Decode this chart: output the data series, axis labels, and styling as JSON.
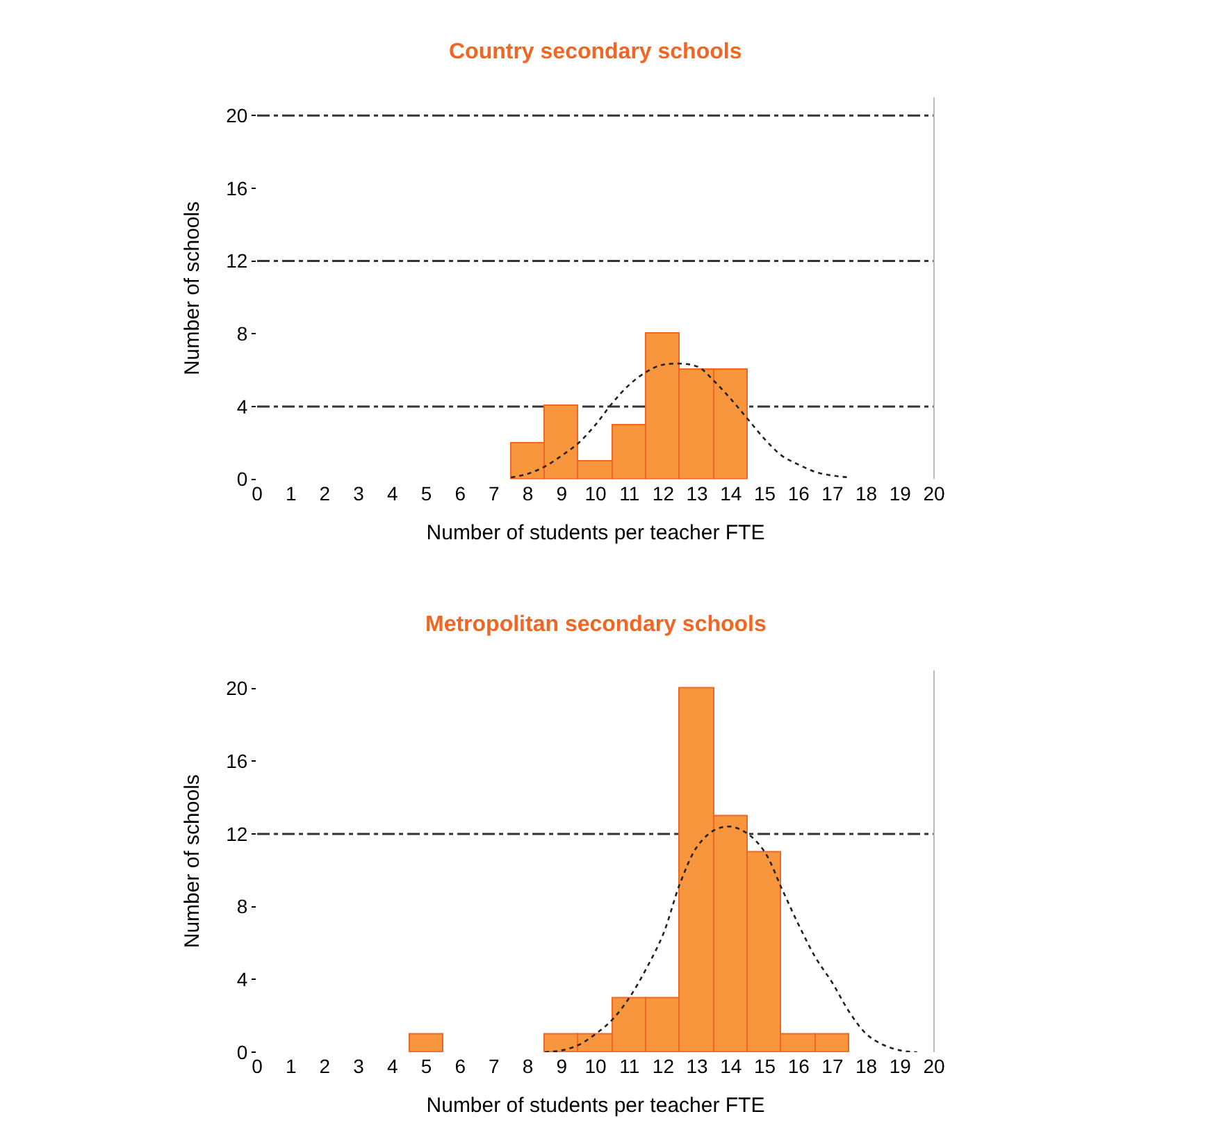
{
  "chart_data": [
    {
      "type": "histogram",
      "title": "Country secondary schools",
      "xlabel": "Number of students per teacher FTE",
      "ylabel": "Number of schools",
      "bins": [
        7.5,
        8.5,
        9.5,
        10.5,
        11.5,
        12.5,
        13.5,
        14.5
      ],
      "series": [
        {
          "color": "#f7963d",
          "values": [
            2,
            4,
            1,
            3,
            8,
            6,
            6
          ]
        },
        {
          "type": "line",
          "color": "#222222",
          "line_style": "dotted",
          "x": [
            7.5,
            8,
            8.5,
            9,
            9.5,
            10,
            10.5,
            11,
            11.5,
            12,
            13,
            13.5,
            14,
            14.5,
            15,
            15.5,
            16,
            16.5,
            17,
            17.5
          ],
          "values": [
            0.1,
            0.3,
            0.7,
            1.3,
            2,
            3,
            4.2,
            5.2,
            5.9,
            6.3,
            6.2,
            5.4,
            4.4,
            3.3,
            2.2,
            1.3,
            0.8,
            0.4,
            0.2,
            0.1
          ]
        }
      ],
      "xlim": [
        0,
        20
      ],
      "xticks": [
        0,
        1,
        2,
        3,
        4,
        5,
        6,
        7,
        8,
        9,
        10,
        11,
        12,
        13,
        14,
        15,
        16,
        17,
        18,
        19,
        20
      ],
      "ylim": [
        0,
        21
      ],
      "yticks": [
        0,
        4,
        8,
        12,
        16,
        20
      ],
      "grid": false,
      "ref_lines": [
        {
          "axis": "y",
          "value": 4,
          "color": "#333333",
          "line_style": "dashed"
        },
        {
          "axis": "y",
          "value": 12,
          "color": "#333333",
          "line_style": "dashed"
        },
        {
          "axis": "y",
          "value": 20,
          "color": "#333333",
          "line_style": "dashed"
        }
      ]
    },
    {
      "type": "histogram",
      "title": "Metropolitan secondary schools",
      "xlabel": "Number of students per teacher FTE",
      "ylabel": "Number of schools",
      "bins": [
        4.5,
        5.5,
        6.5,
        7.5,
        8.5,
        9.5,
        10.5,
        11.5,
        12.5,
        13.5,
        14.5,
        15.5,
        16.5,
        17.5
      ],
      "series": [
        {
          "color": "#f7963d",
          "values": [
            1,
            0,
            0,
            0,
            1,
            1,
            3,
            3,
            20,
            13,
            11,
            1,
            1
          ]
        },
        {
          "type": "line",
          "color": "#222222",
          "line_style": "dotted",
          "x": [
            8.5,
            9,
            9.5,
            10,
            10.5,
            11,
            11.5,
            12,
            12.5,
            13,
            13.5,
            14,
            14.5,
            15,
            15.5,
            16,
            16.5,
            17,
            17.5,
            18,
            18.5,
            19,
            19.5
          ],
          "values": [
            0,
            0.1,
            0.4,
            1,
            1.8,
            3,
            4.6,
            6.5,
            9.3,
            11.3,
            12.2,
            12.4,
            12,
            11,
            9,
            7,
            5.2,
            3.8,
            2.2,
            1,
            0.4,
            0.1,
            0
          ]
        }
      ],
      "xlim": [
        0,
        20
      ],
      "xticks": [
        0,
        1,
        2,
        3,
        4,
        5,
        6,
        7,
        8,
        9,
        10,
        11,
        12,
        13,
        14,
        15,
        16,
        17,
        18,
        19,
        20
      ],
      "ylim": [
        0,
        21
      ],
      "yticks": [
        0,
        4,
        8,
        12,
        16,
        20
      ],
      "grid": false,
      "ref_lines": [
        {
          "axis": "y",
          "value": 12,
          "color": "#333333",
          "line_style": "dashed"
        }
      ]
    }
  ]
}
